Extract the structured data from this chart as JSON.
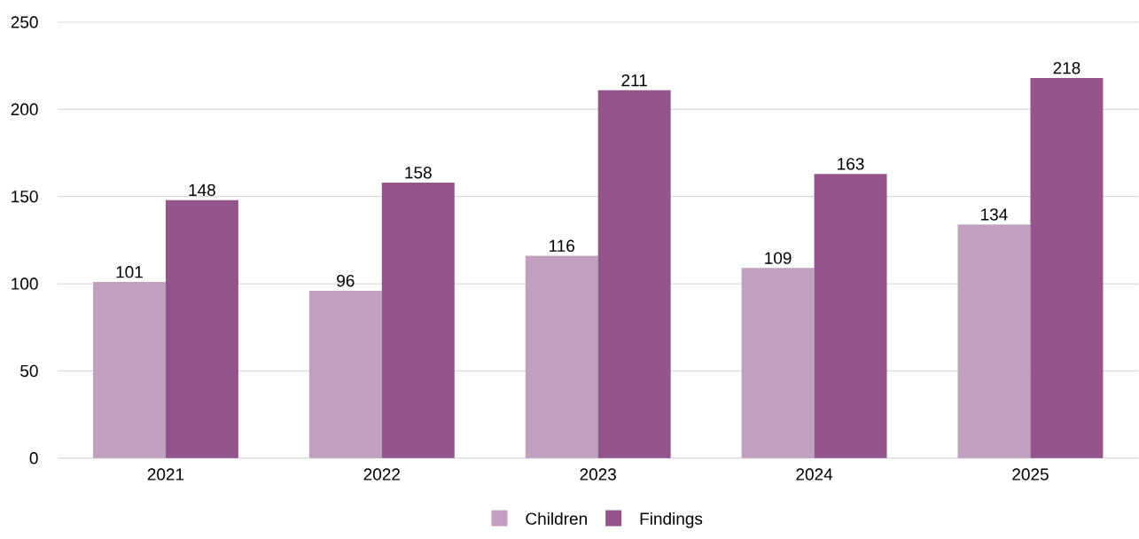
{
  "chart_data": {
    "type": "bar",
    "categories": [
      "2021",
      "2022",
      "2023",
      "2024",
      "2025"
    ],
    "series": [
      {
        "name": "Children",
        "color": "#c09fbf",
        "values": [
          101,
          96,
          116,
          109,
          134
        ]
      },
      {
        "name": "Findings",
        "color": "#93548a",
        "values": [
          148,
          158,
          211,
          163,
          218
        ]
      }
    ],
    "ylim": [
      0,
      250
    ],
    "yticks": [
      0,
      50,
      100,
      150,
      200,
      250
    ],
    "grid": "y",
    "legend": "bottom",
    "data_labels": true
  }
}
